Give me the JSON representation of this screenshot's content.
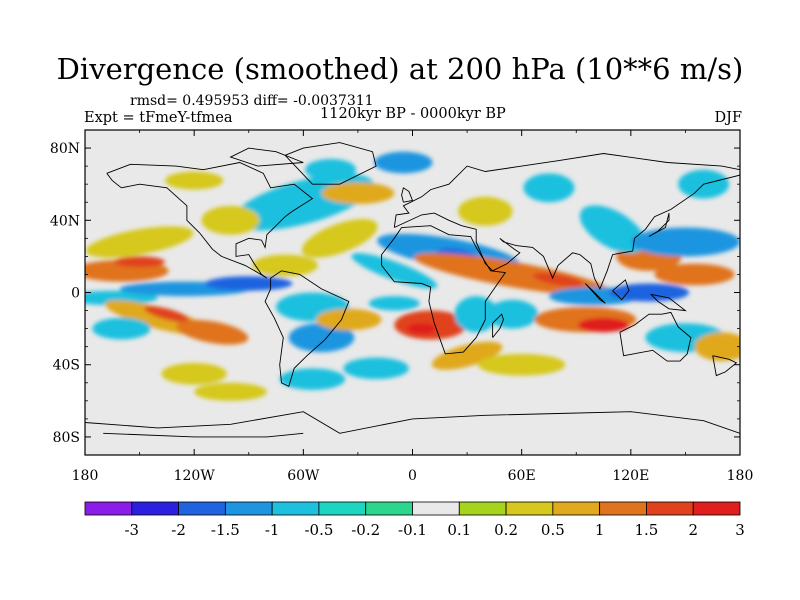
{
  "title": "Divergence (smoothed) at 200 hPa (10**6 m/s)",
  "stats": "rmsd= 0.495953 diff= -0.0037311",
  "experiment": "Expt = tFmeY-tfmea",
  "period": "1120kyr BP - 0000kyr BP",
  "season": "DJF",
  "map": {
    "lat_range": [
      -90,
      90
    ],
    "lon_range": [
      -180,
      180
    ],
    "lat_ticks": [
      "80N",
      "40N",
      "0",
      "40S",
      "80S"
    ],
    "lon_ticks": [
      "180",
      "120W",
      "60W",
      "0",
      "60E",
      "120E",
      "180"
    ]
  },
  "colorbar": {
    "labels": [
      "-3",
      "-2",
      "-1.5",
      "-1",
      "-0.5",
      "-0.2",
      "-0.1",
      "0.1",
      "0.2",
      "0.5",
      "1",
      "1.5",
      "2",
      "3"
    ],
    "colors": [
      "#8a1ee8",
      "#2b1fe0",
      "#1f63e0",
      "#1e95e0",
      "#1ec0df",
      "#1ed6c0",
      "#2ed58c",
      "#e9e9e9",
      "#a6d41e",
      "#d6c81e",
      "#e0a91e",
      "#e0731e",
      "#e0421e",
      "#e01e1e"
    ]
  }
}
